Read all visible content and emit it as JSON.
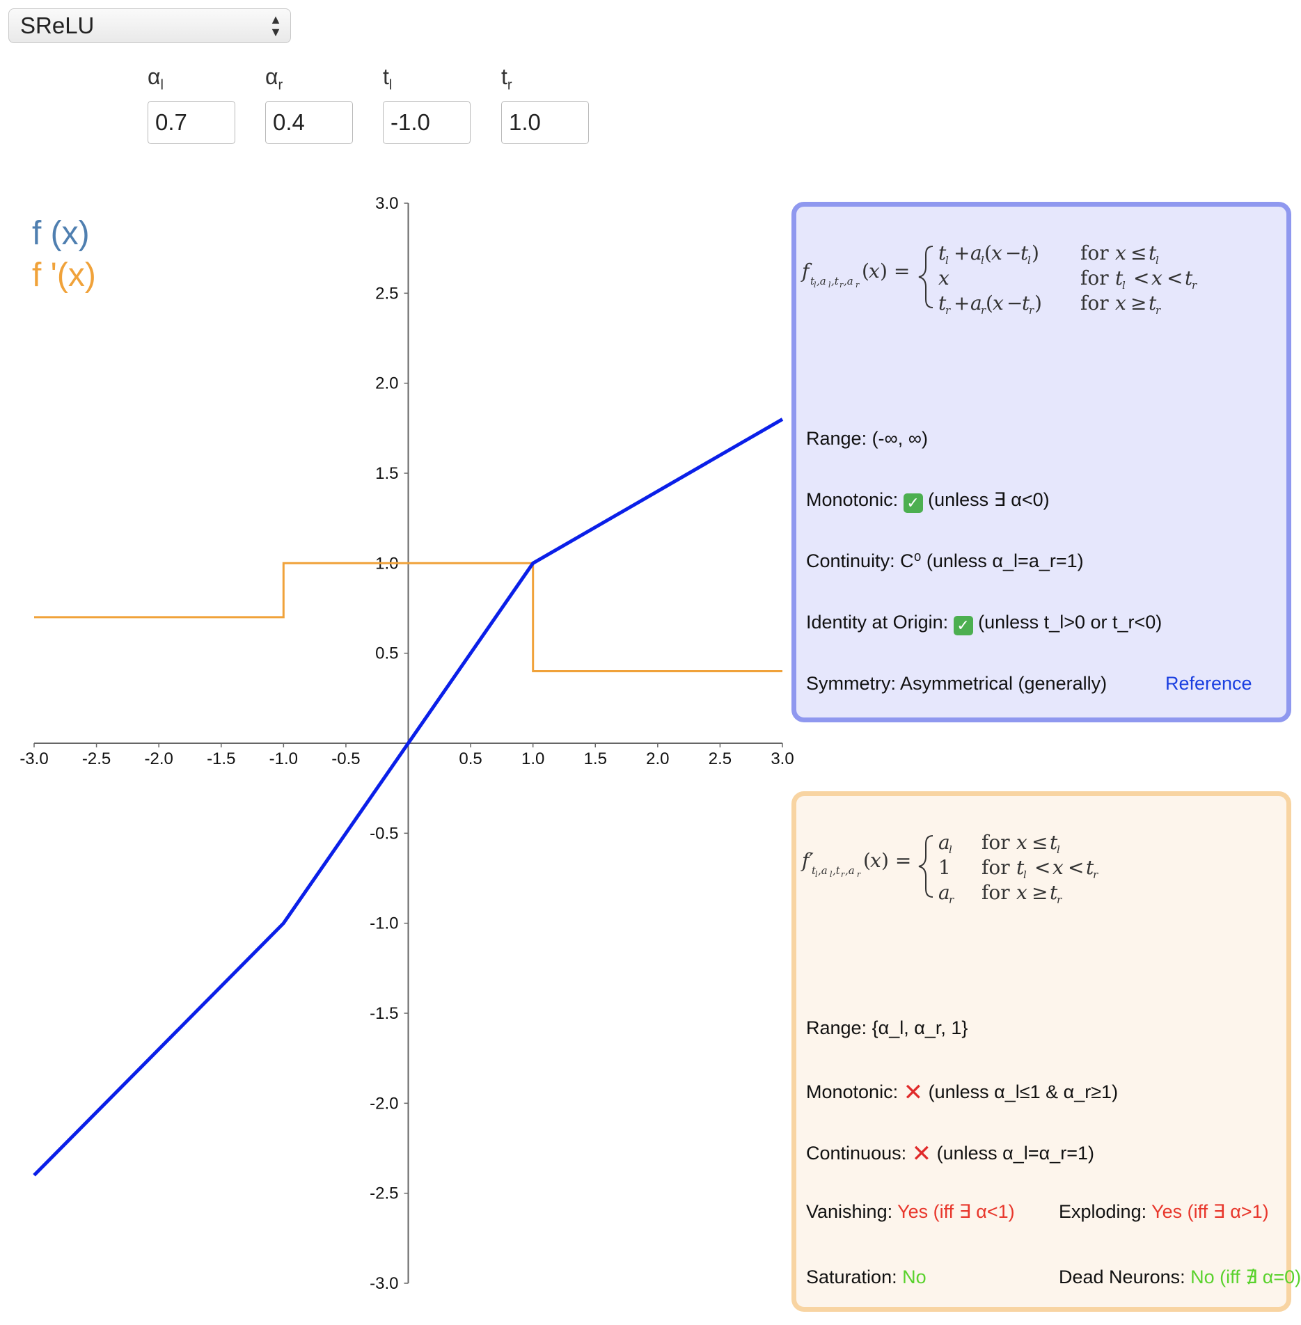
{
  "function_select": {
    "value": "SReLU"
  },
  "params": [
    {
      "name": "α",
      "sub": "l",
      "value": "0.7"
    },
    {
      "name": "α",
      "sub": "r",
      "value": "0.4"
    },
    {
      "name": "t",
      "sub": "l",
      "value": "-1.0"
    },
    {
      "name": "t",
      "sub": "r",
      "value": "1.0"
    }
  ],
  "legend": {
    "f": "f (x)",
    "fprime": "f '(x)"
  },
  "colors": {
    "f_line": "#0a1fe8",
    "fprime_line": "#f0a23a",
    "legend_f": "#4f7fb0",
    "legend_fprime": "#f0a23a"
  },
  "chart_data": {
    "type": "line",
    "xlim": [
      -3.0,
      3.0
    ],
    "ylim": [
      -3.0,
      3.0
    ],
    "x_ticks": [
      "-3.0",
      "-2.5",
      "-2.0",
      "-1.5",
      "-1.0",
      "-0.5",
      "0.5",
      "1.0",
      "1.5",
      "2.0",
      "2.5",
      "3.0"
    ],
    "y_ticks": [
      "3.0",
      "2.5",
      "2.0",
      "1.5",
      "1.0",
      "0.5",
      "-0.5",
      "-1.0",
      "-1.5",
      "-2.0",
      "-2.5",
      "-3.0"
    ],
    "series": [
      {
        "key": "f",
        "points": [
          [
            -3.0,
            -2.4
          ],
          [
            -1.0,
            -1.0
          ],
          [
            1.0,
            1.0
          ],
          [
            3.0,
            1.8
          ]
        ]
      },
      {
        "key": "fprime",
        "points": [
          [
            -3.0,
            0.7
          ],
          [
            -1.0,
            0.7
          ],
          [
            -1.0,
            1.0
          ],
          [
            1.0,
            1.0
          ],
          [
            1.0,
            0.4
          ],
          [
            3.0,
            0.4
          ]
        ]
      }
    ]
  },
  "f_panel": {
    "range": "Range: (-∞, ∞)",
    "monotonic_label": "Monotonic:",
    "monotonic_note": "(unless ∃ α<0)",
    "continuity": "Continuity: C⁰ (unless α_l=a_r=1)",
    "identity_label": "Identity at Origin:",
    "identity_note": "(unless t_l>0 or t_r<0)",
    "symmetry": "Symmetry: Asymmetrical (generally)",
    "reference": "Reference"
  },
  "fp_panel": {
    "range": "Range: {α_l, α_r, 1}",
    "monotonic_label": "Monotonic:",
    "monotonic_note": "(unless α_l≤1 & α_r≥1)",
    "continuous_label": "Continuous:",
    "continuous_note": "(unless α_l=α_r=1)",
    "vanishing_label": "Vanishing:",
    "vanishing_value": "Yes (iff ∃ α<1)",
    "exploding_label": "Exploding:",
    "exploding_value": "Yes (iff ∃ α>1)",
    "saturation_label": "Saturation:",
    "saturation_value": "No",
    "dead_label": "Dead Neurons:",
    "dead_value": "No (iff ∄ α=0)"
  }
}
